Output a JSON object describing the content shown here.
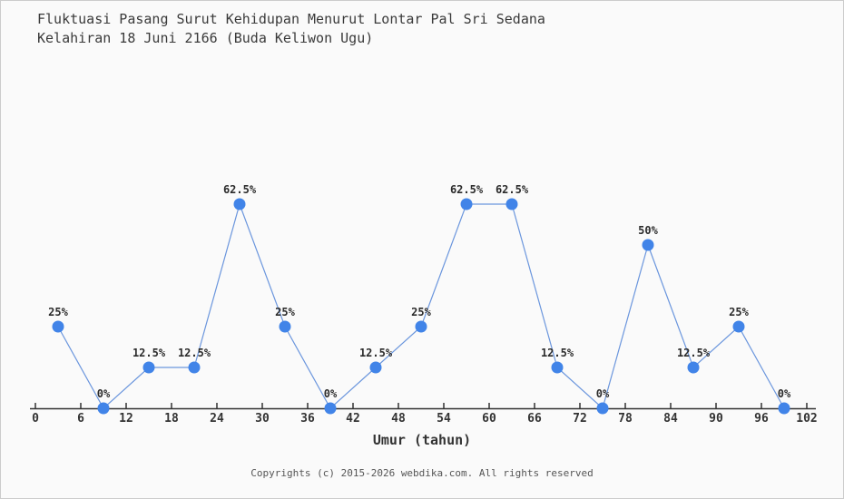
{
  "page": {
    "title_line1": "Fluktuasi Pasang Surut Kehidupan Menurut Lontar Pal Sri Sedana",
    "title_line2": "Kelahiran 18 Juni 2166 (Buda Keliwon Ugu)",
    "footer": "Copyrights (c) 2015-2026 webdika.com. All rights reserved"
  },
  "chart_data": {
    "type": "line",
    "title": "Fluktuasi Pasang Surut Kehidupan Menurut Lontar Pal Sri Sedana Kelahiran 18 Juni 2166 (Buda Keliwon Ugu)",
    "xlabel": "Umur (tahun)",
    "ylabel": "",
    "x": [
      3,
      9,
      15,
      21,
      27,
      33,
      39,
      45,
      51,
      57,
      63,
      69,
      75,
      81,
      87,
      93,
      99
    ],
    "values": [
      25,
      0,
      12.5,
      12.5,
      62.5,
      25,
      0,
      12.5,
      25,
      62.5,
      62.5,
      12.5,
      0,
      50,
      12.5,
      25,
      0
    ],
    "point_labels": [
      "25%",
      "0%",
      "12.5%",
      "12.5%",
      "62.5%",
      "25%",
      "0%",
      "12.5%",
      "25%",
      "62.5%",
      "62.5%",
      "12.5%",
      "0%",
      "50%",
      "12.5%",
      "25%",
      "0%"
    ],
    "x_ticks": [
      0,
      6,
      12,
      18,
      24,
      30,
      36,
      42,
      48,
      54,
      60,
      66,
      72,
      78,
      84,
      90,
      96,
      102
    ],
    "xlim": [
      0,
      102
    ],
    "ylim": [
      0,
      70
    ],
    "grid": false,
    "legend": "none",
    "colors": {
      "line": "#6b96dd",
      "marker": "#4184e8",
      "axis": "#333333",
      "tick_label": "#333333",
      "point_label": "#2b2b2b",
      "background": "#fafafa",
      "border": "#cccccc"
    }
  }
}
